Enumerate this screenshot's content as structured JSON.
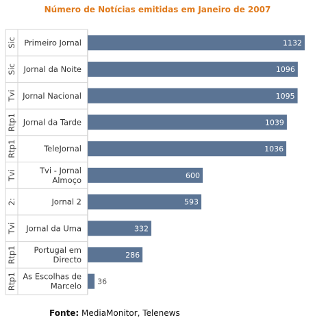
{
  "chart_data": {
    "type": "bar",
    "orientation": "horizontal",
    "title": "Número de Notícias emitidas em Janeiro de 2007",
    "categories": [
      {
        "channel": "Sic",
        "program": [
          "Primeiro Jornal"
        ]
      },
      {
        "channel": "Sic",
        "program": [
          "Jornal da Noite"
        ]
      },
      {
        "channel": "Tvi",
        "program": [
          "Jornal Nacional"
        ]
      },
      {
        "channel": "Rtp1",
        "program": [
          "Jornal da Tarde"
        ]
      },
      {
        "channel": "Rtp1",
        "program": [
          "TeleJornal"
        ]
      },
      {
        "channel": "Tvi",
        "program": [
          "Tvi - Jornal",
          "Almoço"
        ]
      },
      {
        "channel": "2:",
        "program": [
          "Jornal 2"
        ]
      },
      {
        "channel": "Tvi",
        "program": [
          "Jornal da Uma"
        ]
      },
      {
        "channel": "Rtp1",
        "program": [
          "Portugal em",
          "Directo"
        ]
      },
      {
        "channel": "Rtp1",
        "program": [
          "As Escolhas de",
          "Marcelo"
        ]
      }
    ],
    "values": [
      1132,
      1096,
      1095,
      1039,
      1036,
      600,
      593,
      332,
      286,
      36
    ],
    "xlim": [
      0,
      1150
    ],
    "bar_color": "#5b7494",
    "title_color": "#e07a1c",
    "grid": false,
    "legend": "none"
  },
  "source": {
    "label": "Fonte:",
    "text": "MediaMonitor, Telenews"
  }
}
